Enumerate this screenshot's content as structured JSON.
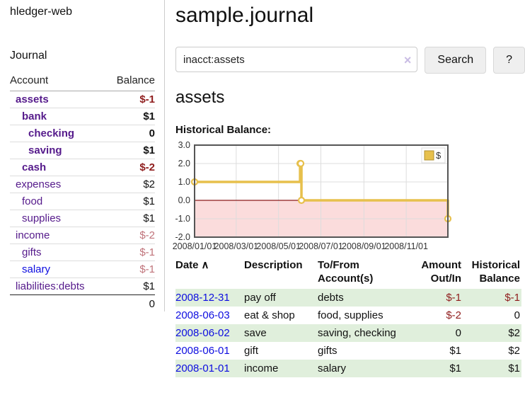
{
  "app": {
    "title": "hledger-web",
    "nav_journal": "Journal"
  },
  "colors": {
    "purple": "#551a8b",
    "blue": "#0d0de0",
    "pos": "#111111",
    "neg": "#8f1d1d",
    "negMuted": "#c0737a",
    "rowShade": "#e0efdc"
  },
  "sidebar": {
    "accounts_header": {
      "account": "Account",
      "balance": "Balance"
    },
    "accounts": [
      {
        "name": "assets",
        "balance": "$-1",
        "indent": 0,
        "emphasis": true,
        "link_color": "purple",
        "balance_color": "neg"
      },
      {
        "name": "bank",
        "balance": "$1",
        "indent": 1,
        "emphasis": true,
        "link_color": "purple",
        "balance_color": "pos"
      },
      {
        "name": "checking",
        "balance": "0",
        "indent": 2,
        "emphasis": true,
        "link_color": "purple",
        "balance_color": "pos"
      },
      {
        "name": "saving",
        "balance": "$1",
        "indent": 2,
        "emphasis": true,
        "link_color": "purple",
        "balance_color": "pos"
      },
      {
        "name": "cash",
        "balance": "$-2",
        "indent": 1,
        "emphasis": true,
        "link_color": "purple",
        "balance_color": "neg"
      },
      {
        "name": "expenses",
        "balance": "$2",
        "indent": 0,
        "emphasis": false,
        "link_color": "purple",
        "balance_color": "pos"
      },
      {
        "name": "food",
        "balance": "$1",
        "indent": 1,
        "emphasis": false,
        "link_color": "purple",
        "balance_color": "pos"
      },
      {
        "name": "supplies",
        "balance": "$1",
        "indent": 1,
        "emphasis": false,
        "link_color": "purple",
        "balance_color": "pos"
      },
      {
        "name": "income",
        "balance": "$-2",
        "indent": 0,
        "emphasis": false,
        "link_color": "purple",
        "balance_color": "negMuted"
      },
      {
        "name": "gifts",
        "balance": "$-1",
        "indent": 1,
        "emphasis": false,
        "link_color": "purple",
        "balance_color": "negMuted"
      },
      {
        "name": "salary",
        "balance": "$-1",
        "indent": 1,
        "emphasis": false,
        "link_color": "blue",
        "balance_color": "negMuted"
      },
      {
        "name": "liabilities:debts",
        "balance": "$1",
        "indent": 0,
        "emphasis": false,
        "link_color": "purple",
        "balance_color": "pos"
      }
    ],
    "total": "0"
  },
  "main": {
    "title": "sample.journal",
    "search": {
      "value": "inacct:assets",
      "clear_icon": "×",
      "button": "Search",
      "help_button": "?"
    },
    "account_heading": "assets",
    "chart_label": "Historical Balance:"
  },
  "chart_data": {
    "type": "line",
    "step": true,
    "title": "Historical Balance",
    "series": [
      {
        "name": "$",
        "points": [
          [
            "2008-01-01",
            1
          ],
          [
            "2008-06-01",
            2
          ],
          [
            "2008-06-02",
            2
          ],
          [
            "2008-06-03",
            0
          ],
          [
            "2008-12-31",
            -1
          ]
        ]
      }
    ],
    "xdomain": [
      "2008-01-01",
      "2008-12-31"
    ],
    "ylim": [
      -2,
      3
    ],
    "yticks": [
      3.0,
      2.0,
      1.0,
      0.0,
      -1.0,
      -2.0
    ],
    "ytick_labels": [
      "3.0",
      "2.0",
      "1.0",
      "0.0",
      "-1.0",
      "-2.0"
    ],
    "xticks": [
      {
        "date": "2008-01-01",
        "label": "2008/01/01"
      },
      {
        "date": "2008-03-01",
        "label": "2008/03/01"
      },
      {
        "date": "2008-05-01",
        "label": "2008/05/01"
      },
      {
        "date": "2008-07-01",
        "label": "2008/07/01"
      },
      {
        "date": "2008-09-01",
        "label": "2008/09/01"
      },
      {
        "date": "2008-11-01",
        "label": "2008/11/01"
      }
    ],
    "grid": true,
    "line_color": "#e7c04c",
    "marker_fill": "#ffffff",
    "negative_region_color": "#fbdcdc",
    "zero_line_color": "#8b1a1a",
    "border_color": "#555555",
    "grid_color": "#dddddd",
    "tick_label_color": "#333333",
    "legend": {
      "label": "$",
      "position": "top-right",
      "swatch_color": "#e7c04c",
      "swatch_border": "#b08f2c"
    }
  },
  "register": {
    "columns": [
      {
        "label": "Date",
        "align": "left",
        "sort_icon": "∧"
      },
      {
        "label": "Description",
        "align": "left"
      },
      {
        "label": "To/From Account(s)",
        "align": "left"
      },
      {
        "label": "Amount Out/In",
        "align": "right"
      },
      {
        "label": "Historical Balance",
        "align": "right"
      }
    ],
    "rows": [
      {
        "date": "2008-12-31",
        "description": "pay off",
        "accounts": "debts",
        "amount": "$-1",
        "amount_color": "neg",
        "balance": "$-1",
        "balance_color": "neg",
        "shaded": true
      },
      {
        "date": "2008-06-03",
        "description": "eat & shop",
        "accounts": "food, supplies",
        "amount": "$-2",
        "amount_color": "neg",
        "balance": "0",
        "balance_color": "pos",
        "shaded": false
      },
      {
        "date": "2008-06-02",
        "description": "save",
        "accounts": "saving, checking",
        "amount": "0",
        "amount_color": "pos",
        "balance": "$2",
        "balance_color": "pos",
        "shaded": true
      },
      {
        "date": "2008-06-01",
        "description": "gift",
        "accounts": "gifts",
        "amount": "$1",
        "amount_color": "pos",
        "balance": "$2",
        "balance_color": "pos",
        "shaded": false
      },
      {
        "date": "2008-01-01",
        "description": "income",
        "accounts": "salary",
        "amount": "$1",
        "amount_color": "pos",
        "balance": "$1",
        "balance_color": "pos",
        "shaded": true
      }
    ]
  }
}
